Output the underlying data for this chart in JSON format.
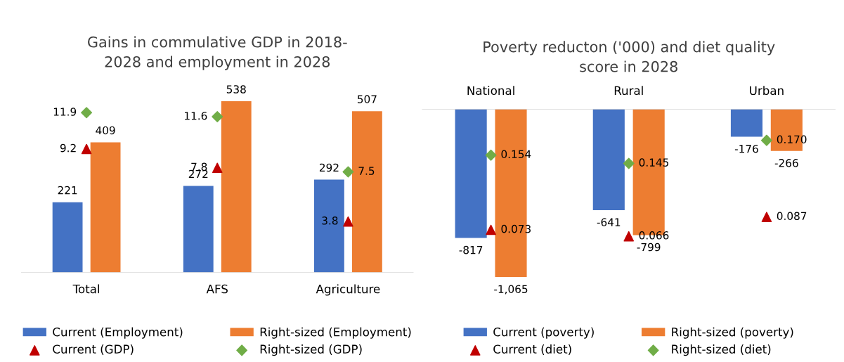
{
  "chart_data": [
    {
      "type": "bar",
      "title": "Gains in commulative GDP in 2018-\n2028 and employment in 2028",
      "categories": [
        "Total",
        "AFS",
        "Agriculture"
      ],
      "legend": "bottom",
      "grid": false,
      "series": [
        {
          "name": "Current (Employment)",
          "color": "#4472c4",
          "values": [
            221,
            272,
            292
          ],
          "value_labels": [
            "221",
            "272",
            "292"
          ]
        },
        {
          "name": "Right-sized (Employment)",
          "color": "#ed7d31",
          "values": [
            409,
            538,
            507
          ],
          "value_labels": [
            "409",
            "538",
            "507"
          ]
        },
        {
          "name": "Current (GDP)",
          "type": "scatter",
          "axis": "y2",
          "marker": "triangle",
          "color": "#c00000",
          "values": [
            9.2,
            7.8,
            3.8
          ],
          "value_labels": [
            "9.2",
            "7.8",
            "3.8"
          ]
        },
        {
          "name": "Right-sized (GDP)",
          "type": "scatter",
          "axis": "y2",
          "marker": "diamond",
          "color": "#70ad47",
          "values": [
            11.9,
            11.6,
            7.5
          ],
          "value_labels": [
            "11.9",
            "11.6",
            "7.5"
          ]
        }
      ]
    },
    {
      "type": "bar",
      "title": "Poverty reducton ('000) and diet quality\nscore in 2028",
      "categories": [
        "National",
        "Rural",
        "Urban"
      ],
      "legend": "bottom",
      "grid": false,
      "series": [
        {
          "name": "Current (poverty)",
          "color": "#4472c4",
          "values": [
            -817,
            -641,
            -176
          ],
          "value_labels": [
            "-817",
            "-641",
            "-176"
          ]
        },
        {
          "name": "Right-sized (poverty)",
          "color": "#ed7d31",
          "values": [
            -1065,
            -799,
            -266
          ],
          "value_labels": [
            "-1,065",
            "-799",
            "-266"
          ]
        },
        {
          "name": "Current (diet)",
          "type": "scatter",
          "axis": "y2",
          "marker": "triangle",
          "color": "#c00000",
          "values": [
            0.073,
            0.066,
            0.087
          ],
          "value_labels": [
            "0.073",
            "0.066",
            "0.087"
          ]
        },
        {
          "name": "Right-sized (diet)",
          "type": "scatter",
          "axis": "y2",
          "marker": "diamond",
          "color": "#70ad47",
          "values": [
            0.154,
            0.145,
            0.17
          ],
          "value_labels": [
            "0.154",
            "0.145",
            "0.170"
          ]
        }
      ]
    }
  ]
}
